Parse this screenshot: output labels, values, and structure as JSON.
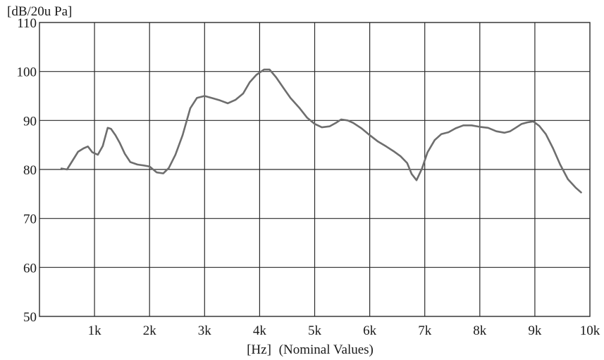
{
  "chart_data": {
    "type": "line",
    "ylabel": "[dB/20u Pa]",
    "xlabel_unit": "[Hz]",
    "xlabel_note": "(Nominal Values)",
    "xlim": [
      0,
      10000
    ],
    "ylim": [
      50,
      110
    ],
    "grid": true,
    "x_ticks": [
      1000,
      2000,
      3000,
      4000,
      5000,
      6000,
      7000,
      8000,
      9000,
      10000
    ],
    "x_tick_labels": [
      "1k",
      "2k",
      "3k",
      "4k",
      "5k",
      "6k",
      "7k",
      "8k",
      "9k",
      "10k"
    ],
    "y_ticks": [
      50,
      60,
      70,
      80,
      90,
      100,
      110
    ],
    "y_tick_labels": [
      "50",
      "60",
      "70",
      "80",
      "90",
      "100",
      "110"
    ],
    "series": [
      {
        "color": "#6e6e6e",
        "x": [
          400,
          500,
          600,
          700,
          800,
          880,
          960,
          1060,
          1150,
          1240,
          1300,
          1380,
          1460,
          1550,
          1650,
          1780,
          1900,
          2000,
          2130,
          2250,
          2350,
          2470,
          2600,
          2740,
          2860,
          3000,
          3160,
          3280,
          3420,
          3560,
          3700,
          3820,
          3940,
          4080,
          4180,
          4300,
          4440,
          4560,
          4720,
          4860,
          5000,
          5130,
          5270,
          5400,
          5480,
          5600,
          5700,
          5850,
          6000,
          6150,
          6300,
          6450,
          6560,
          6680,
          6760,
          6850,
          6950,
          7050,
          7180,
          7300,
          7430,
          7560,
          7700,
          7850,
          8000,
          8150,
          8300,
          8450,
          8550,
          8650,
          8760,
          8860,
          8970,
          9080,
          9200,
          9330,
          9460,
          9600,
          9740,
          9840
        ],
        "values": [
          80.2,
          80.0,
          81.8,
          83.6,
          84.3,
          84.7,
          83.5,
          83.0,
          84.8,
          88.5,
          88.3,
          87.0,
          85.4,
          83.2,
          81.5,
          81.0,
          80.8,
          80.6,
          79.4,
          79.2,
          80.3,
          83.0,
          87.0,
          92.5,
          94.6,
          95.0,
          94.5,
          94.1,
          93.5,
          94.2,
          95.5,
          97.8,
          99.3,
          100.4,
          100.4,
          98.8,
          96.5,
          94.6,
          92.6,
          90.6,
          89.3,
          88.6,
          88.8,
          89.6,
          90.2,
          90.0,
          89.5,
          88.4,
          87.0,
          85.7,
          84.7,
          83.6,
          82.7,
          81.3,
          79.1,
          77.8,
          80.2,
          83.5,
          86.0,
          87.2,
          87.6,
          88.4,
          89.0,
          89.0,
          88.7,
          88.5,
          87.8,
          87.5,
          87.8,
          88.5,
          89.3,
          89.6,
          89.8,
          88.9,
          87.2,
          84.3,
          81.0,
          78.0,
          76.3,
          75.3
        ]
      }
    ]
  }
}
